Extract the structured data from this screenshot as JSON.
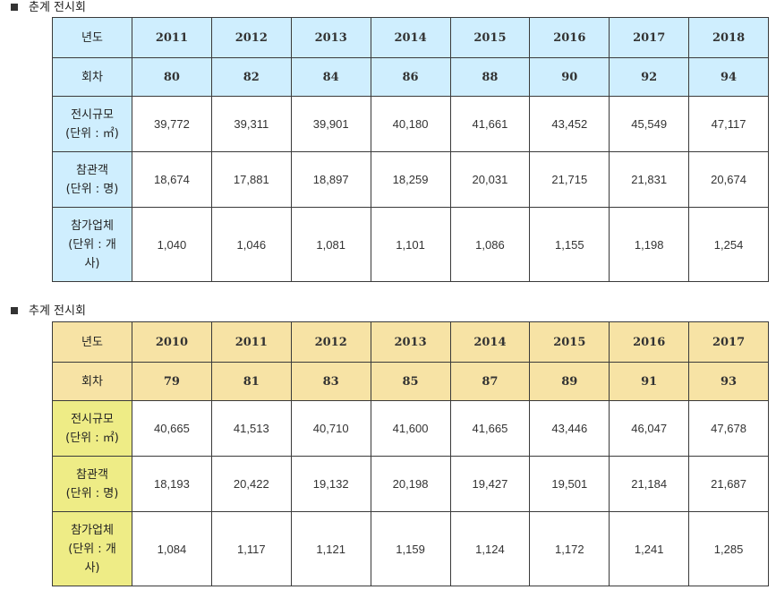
{
  "sections": [
    {
      "title": "춘계 전시회",
      "header": {
        "year_label": "년도",
        "session_label": "회차"
      },
      "years": [
        "2011",
        "2012",
        "2013",
        "2014",
        "2015",
        "2016",
        "2017",
        "2018"
      ],
      "sessions": [
        "80",
        "82",
        "84",
        "86",
        "88",
        "90",
        "92",
        "94"
      ],
      "rows": [
        {
          "label_lines": [
            "전시규모",
            "(단위 : ㎡)"
          ],
          "values": [
            "39,772",
            "39,311",
            "39,901",
            "40,180",
            "41,661",
            "43,452",
            "45,549",
            "47,117"
          ]
        },
        {
          "label_lines": [
            "참관객",
            "(단위 : 명)"
          ],
          "values": [
            "18,674",
            "17,881",
            "18,897",
            "18,259",
            "20,031",
            "21,715",
            "21,831",
            "20,674"
          ]
        },
        {
          "label_lines": [
            "참가업체",
            "(단위 : 개",
            "사)"
          ],
          "values": [
            "1,040",
            "1,046",
            "1,081",
            "1,101",
            "1,086",
            "1,155",
            "1,198",
            "1,254"
          ]
        }
      ]
    },
    {
      "title": "추계 전시회",
      "header": {
        "year_label": "년도",
        "session_label": "회차"
      },
      "years": [
        "2010",
        "2011",
        "2012",
        "2013",
        "2014",
        "2015",
        "2016",
        "2017"
      ],
      "sessions": [
        "79",
        "81",
        "83",
        "85",
        "87",
        "89",
        "91",
        "93"
      ],
      "rows": [
        {
          "label_lines": [
            "전시규모",
            "(단위 : ㎡)"
          ],
          "values": [
            "40,665",
            "41,513",
            "40,710",
            "41,600",
            "41,665",
            "43,446",
            "46,047",
            "47,678"
          ]
        },
        {
          "label_lines": [
            "참관객",
            "(단위 : 명)"
          ],
          "values": [
            "18,193",
            "20,422",
            "19,132",
            "20,198",
            "19,427",
            "19,501",
            "21,184",
            "21,687"
          ]
        },
        {
          "label_lines": [
            "참가업체",
            "(단위 : 개",
            "사)"
          ],
          "values": [
            "1,084",
            "1,117",
            "1,121",
            "1,159",
            "1,124",
            "1,172",
            "1,241",
            "1,285"
          ]
        }
      ]
    }
  ],
  "colors": {
    "spring_header_bg": "#cfeefe",
    "autumn_header_bg": "#f7e3a5",
    "autumn_label_bg": "#eeec86",
    "border": "#3a3a3a"
  }
}
